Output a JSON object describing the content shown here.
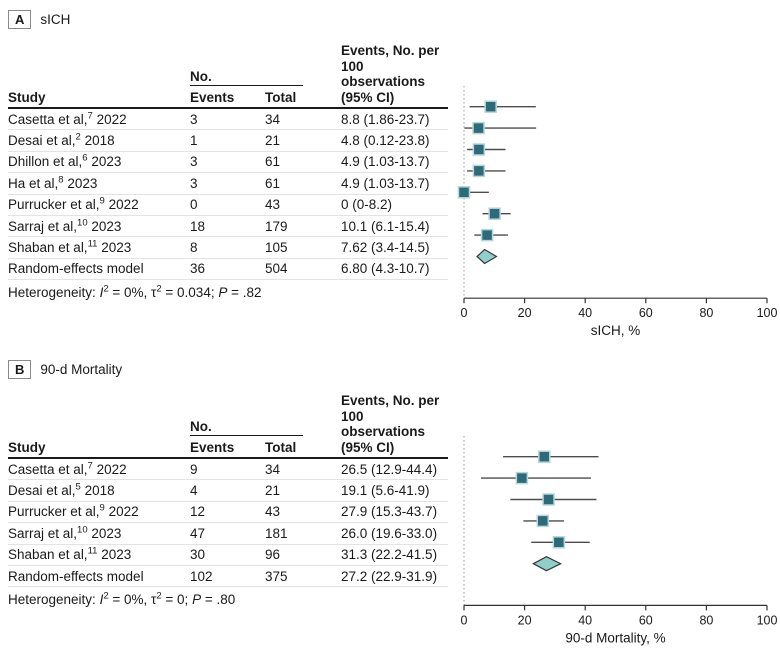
{
  "colors": {
    "marker_fill": "#2d6b7a",
    "marker_stroke": "#b7d7d9",
    "diamond_fill": "#8fd0cb",
    "diamond_stroke": "#3a3a3a",
    "ci_line": "#4d4d4d",
    "axis": "#333333",
    "dotted_line": "#999999",
    "text": "#1a1a1a"
  },
  "chart_data": [
    {
      "type": "scatter",
      "subtype": "forest-plot",
      "label": "A",
      "title": "sICH",
      "columns": {
        "study": "Study",
        "no_group": "No.",
        "events": "Events",
        "total": "Total",
        "ci_header": [
          "Events, No. per",
          "100 observations",
          "(95% CI)"
        ]
      },
      "rows": [
        {
          "study": "Casetta et al,",
          "ref": "7",
          "year": "2022",
          "events": "3",
          "total": "34",
          "ci_text": "8.8 (1.86-23.7)",
          "estimate": 8.8,
          "lo": 1.86,
          "hi": 23.7
        },
        {
          "study": "Desai et al,",
          "ref": "2",
          "year": "2018",
          "events": "1",
          "total": "21",
          "ci_text": "4.8 (0.12-23.8)",
          "estimate": 4.8,
          "lo": 0.12,
          "hi": 23.8
        },
        {
          "study": "Dhillon et al,",
          "ref": "6",
          "year": "2023",
          "events": "3",
          "total": "61",
          "ci_text": "4.9 (1.03-13.7)",
          "estimate": 4.9,
          "lo": 1.03,
          "hi": 13.7
        },
        {
          "study": "Ha et al,",
          "ref": "8",
          "year": "2023",
          "events": "3",
          "total": "61",
          "ci_text": "4.9 (1.03-13.7)",
          "estimate": 4.9,
          "lo": 1.03,
          "hi": 13.7
        },
        {
          "study": "Purrucker et al,",
          "ref": "9",
          "year": "2022",
          "events": "0",
          "total": "43",
          "ci_text": "0 (0-8.2)",
          "estimate": 0,
          "lo": 0,
          "hi": 8.2
        },
        {
          "study": "Sarraj et al,",
          "ref": "10",
          "year": "2023",
          "events": "18",
          "total": "179",
          "ci_text": "10.1 (6.1-15.4)",
          "estimate": 10.1,
          "lo": 6.1,
          "hi": 15.4
        },
        {
          "study": "Shaban et al,",
          "ref": "11",
          "year": "2023",
          "events": "8",
          "total": "105",
          "ci_text": "7.62 (3.4-14.5)",
          "estimate": 7.62,
          "lo": 3.4,
          "hi": 14.5
        },
        {
          "study": "Random-effects model",
          "ref": "",
          "year": "",
          "events": "36",
          "total": "504",
          "ci_text": "6.80 (4.3-10.7)",
          "estimate": 6.8,
          "lo": 4.3,
          "hi": 10.7,
          "pooled": true
        }
      ],
      "heterogeneity": [
        {
          "t": "Heterogeneity: "
        },
        {
          "t": "I",
          "i": true
        },
        {
          "t": "2",
          "sup": true
        },
        {
          "t": " = 0%, τ"
        },
        {
          "t": "2",
          "sup": true
        },
        {
          "t": " = 0.034; "
        },
        {
          "t": "P",
          "i": true
        },
        {
          "t": " = .82"
        }
      ],
      "axis": {
        "min": 0,
        "max": 100,
        "ticks": [
          0,
          20,
          40,
          60,
          80,
          100
        ],
        "label": "sICH, %"
      }
    },
    {
      "type": "scatter",
      "subtype": "forest-plot",
      "label": "B",
      "title": "90-d Mortality",
      "columns": {
        "study": "Study",
        "no_group": "No.",
        "events": "Events",
        "total": "Total",
        "ci_header": [
          "Events, No. per",
          "100 observations",
          "(95% CI)"
        ]
      },
      "rows": [
        {
          "study": "Casetta et al,",
          "ref": "7",
          "year": "2022",
          "events": "9",
          "total": "34",
          "ci_text": "26.5 (12.9-44.4)",
          "estimate": 26.5,
          "lo": 12.9,
          "hi": 44.4
        },
        {
          "study": "Desai et al,",
          "ref": "5",
          "year": "2018",
          "events": "4",
          "total": "21",
          "ci_text": "19.1 (5.6-41.9)",
          "estimate": 19.1,
          "lo": 5.6,
          "hi": 41.9
        },
        {
          "study": "Purrucker et al,",
          "ref": "9",
          "year": "2022",
          "events": "12",
          "total": "43",
          "ci_text": "27.9 (15.3-43.7)",
          "estimate": 27.9,
          "lo": 15.3,
          "hi": 43.7
        },
        {
          "study": "Sarraj et al,",
          "ref": "10",
          "year": "2023",
          "events": "47",
          "total": "181",
          "ci_text": "26.0 (19.6-33.0)",
          "estimate": 26.0,
          "lo": 19.6,
          "hi": 33.0
        },
        {
          "study": "Shaban et al,",
          "ref": "11",
          "year": "2023",
          "events": "30",
          "total": "96",
          "ci_text": "31.3 (22.2-41.5)",
          "estimate": 31.3,
          "lo": 22.2,
          "hi": 41.5
        },
        {
          "study": "Random-effects model",
          "ref": "",
          "year": "",
          "events": "102",
          "total": "375",
          "ci_text": "27.2 (22.9-31.9)",
          "estimate": 27.2,
          "lo": 22.9,
          "hi": 31.9,
          "pooled": true
        }
      ],
      "heterogeneity": [
        {
          "t": "Heterogeneity: "
        },
        {
          "t": "I",
          "i": true
        },
        {
          "t": "2",
          "sup": true
        },
        {
          "t": " = 0%, τ"
        },
        {
          "t": "2",
          "sup": true
        },
        {
          "t": " = 0; "
        },
        {
          "t": "P",
          "i": true
        },
        {
          "t": " = .80"
        }
      ],
      "axis": {
        "min": 0,
        "max": 100,
        "ticks": [
          0,
          20,
          40,
          60,
          80,
          100
        ],
        "label": "90-d Mortality, %"
      }
    }
  ]
}
